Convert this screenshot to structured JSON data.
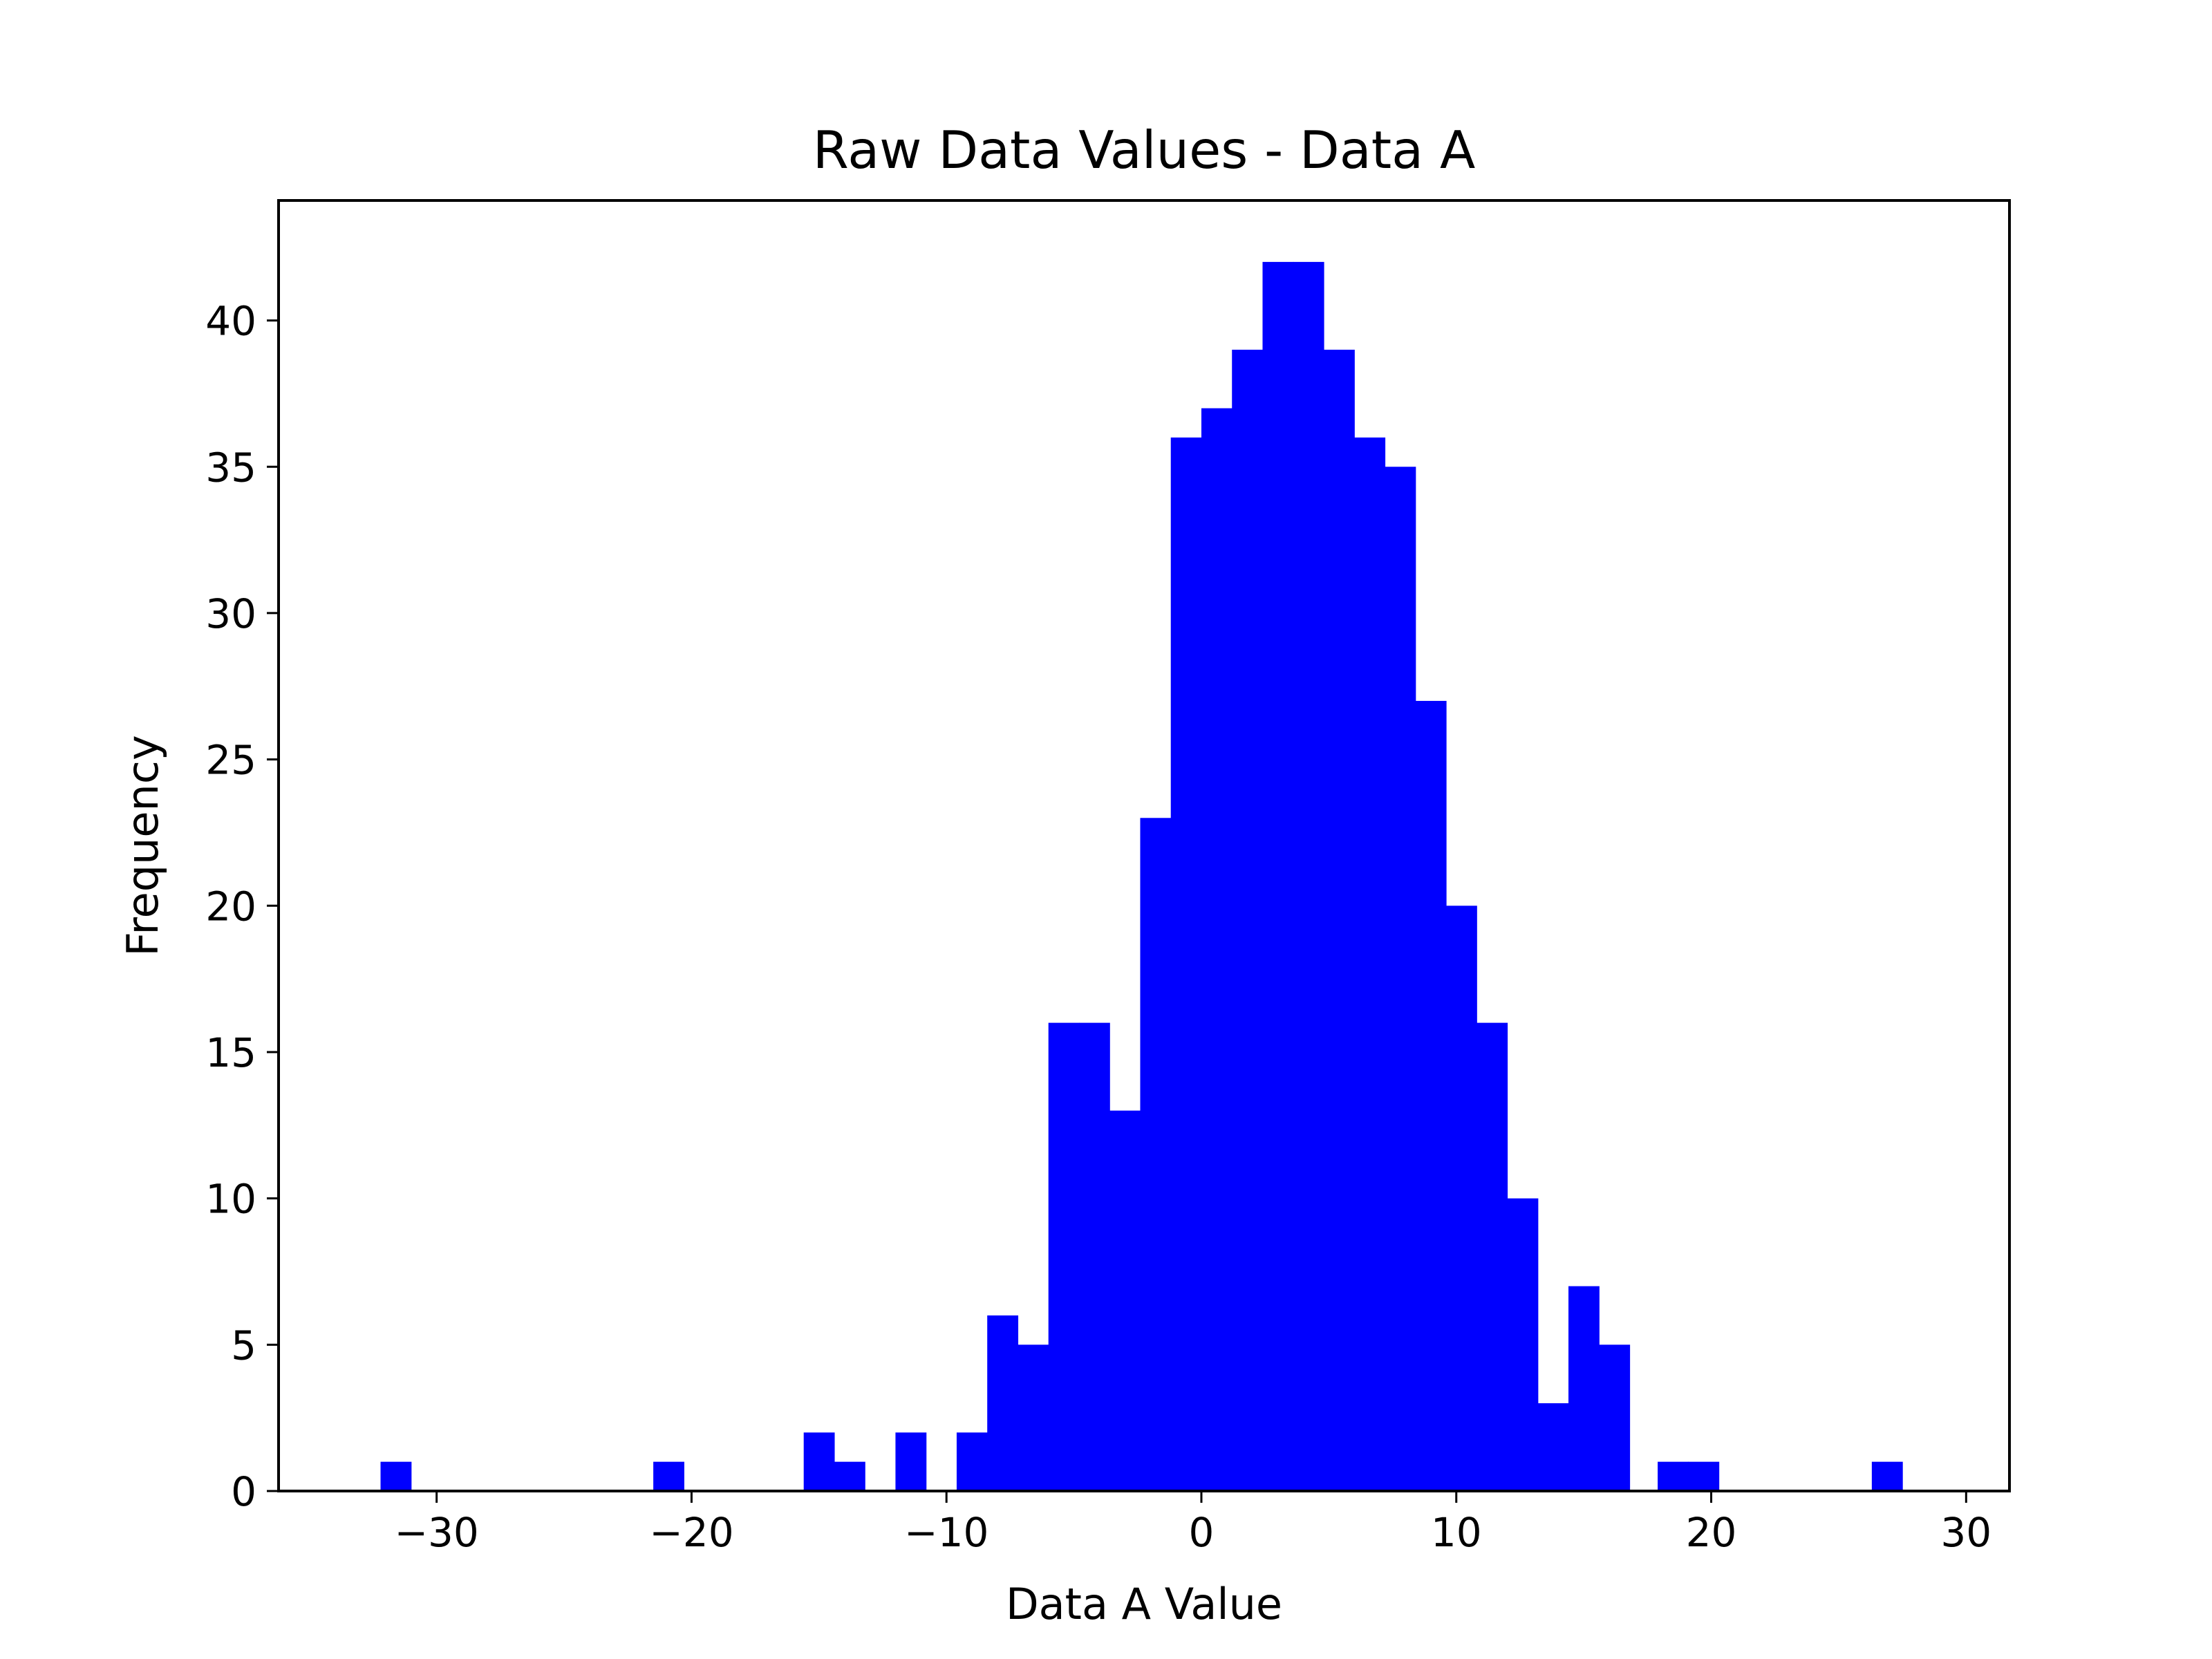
{
  "chart_data": {
    "type": "bar",
    "title": "Raw Data Values - Data A",
    "xlabel": "Data A Value",
    "ylabel": "Frequency",
    "xlim": [
      -36.2,
      31.7
    ],
    "ylim": [
      0,
      44.1
    ],
    "x_ticks": [
      -30,
      -20,
      -10,
      0,
      10,
      20,
      30
    ],
    "x_tick_labels": [
      "−30",
      "−20",
      "−10",
      "0",
      "10",
      "20",
      "30"
    ],
    "y_ticks": [
      0,
      5,
      10,
      15,
      20,
      25,
      30,
      35,
      40
    ],
    "y_tick_labels": [
      "0",
      "5",
      "10",
      "15",
      "20",
      "25",
      "30",
      "35",
      "40"
    ],
    "bar_color": "#0000ff",
    "grid": false,
    "legend": "none",
    "bin_start": -32.2,
    "bin_width": 1.19,
    "bins": [
      {
        "x0": -32.2,
        "x1": -31.0,
        "value": 1
      },
      {
        "x0": -21.5,
        "x1": -20.3,
        "value": 1
      },
      {
        "x0": -15.6,
        "x1": -14.4,
        "value": 2
      },
      {
        "x0": -14.4,
        "x1": -13.2,
        "value": 1
      },
      {
        "x0": -12.0,
        "x1": -10.8,
        "value": 2
      },
      {
        "x0": -9.6,
        "x1": -8.4,
        "value": 2
      },
      {
        "x0": -8.4,
        "x1": -7.2,
        "value": 6
      },
      {
        "x0": -7.2,
        "x1": -6.0,
        "value": 5
      },
      {
        "x0": -6.0,
        "x1": -4.8,
        "value": 16
      },
      {
        "x0": -4.8,
        "x1": -3.6,
        "value": 16
      },
      {
        "x0": -3.6,
        "x1": -2.4,
        "value": 13
      },
      {
        "x0": -2.4,
        "x1": -1.2,
        "value": 23
      },
      {
        "x0": -1.2,
        "x1": 0.0,
        "value": 36
      },
      {
        "x0": 0.0,
        "x1": 1.2,
        "value": 37
      },
      {
        "x0": 1.2,
        "x1": 2.4,
        "value": 39
      },
      {
        "x0": 2.4,
        "x1": 3.6,
        "value": 42
      },
      {
        "x0": 3.6,
        "x1": 4.8,
        "value": 42
      },
      {
        "x0": 4.8,
        "x1": 6.0,
        "value": 39
      },
      {
        "x0": 6.0,
        "x1": 7.2,
        "value": 36
      },
      {
        "x0": 7.2,
        "x1": 8.4,
        "value": 35
      },
      {
        "x0": 8.4,
        "x1": 9.6,
        "value": 27
      },
      {
        "x0": 9.6,
        "x1": 10.8,
        "value": 20
      },
      {
        "x0": 10.8,
        "x1": 12.0,
        "value": 16
      },
      {
        "x0": 12.0,
        "x1": 13.2,
        "value": 10
      },
      {
        "x0": 13.2,
        "x1": 14.4,
        "value": 3
      },
      {
        "x0": 14.4,
        "x1": 15.6,
        "value": 7
      },
      {
        "x0": 15.6,
        "x1": 16.8,
        "value": 5
      },
      {
        "x0": 17.9,
        "x1": 19.1,
        "value": 1
      },
      {
        "x0": 19.1,
        "x1": 20.3,
        "value": 1
      },
      {
        "x0": 26.3,
        "x1": 27.5,
        "value": 1
      }
    ]
  }
}
